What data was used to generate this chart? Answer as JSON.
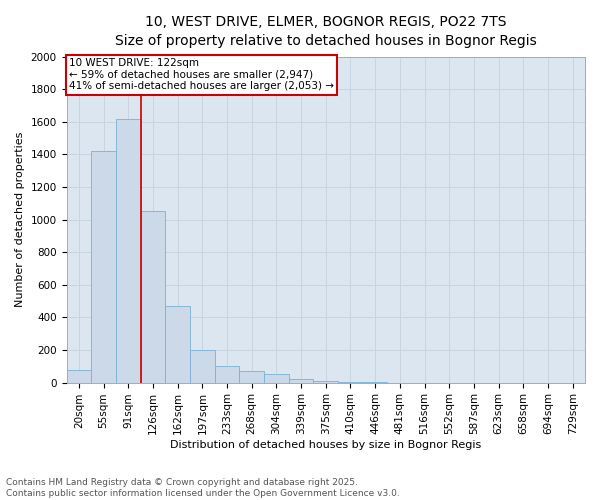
{
  "title_line1": "10, WEST DRIVE, ELMER, BOGNOR REGIS, PO22 7TS",
  "title_line2": "Size of property relative to detached houses in Bognor Regis",
  "xlabel": "Distribution of detached houses by size in Bognor Regis",
  "ylabel": "Number of detached properties",
  "bar_color": "#ccd9e8",
  "bar_edge_color": "#7ab0d4",
  "grid_color": "#c8d4e0",
  "background_color": "#dce6f0",
  "annotation_box_color": "#cc0000",
  "vline_color": "#cc0000",
  "categories": [
    "20sqm",
    "55sqm",
    "91sqm",
    "126sqm",
    "162sqm",
    "197sqm",
    "233sqm",
    "268sqm",
    "304sqm",
    "339sqm",
    "375sqm",
    "410sqm",
    "446sqm",
    "481sqm",
    "516sqm",
    "552sqm",
    "587sqm",
    "623sqm",
    "658sqm",
    "694sqm",
    "729sqm"
  ],
  "values": [
    75,
    1420,
    1620,
    1050,
    470,
    200,
    100,
    70,
    50,
    25,
    10,
    5,
    2,
    0,
    0,
    0,
    0,
    0,
    0,
    0,
    0
  ],
  "ylim": [
    0,
    2000
  ],
  "yticks": [
    0,
    200,
    400,
    600,
    800,
    1000,
    1200,
    1400,
    1600,
    1800,
    2000
  ],
  "annotation_text_line1": "10 WEST DRIVE: 122sqm",
  "annotation_text_line2": "← 59% of detached houses are smaller (2,947)",
  "annotation_text_line3": "41% of semi-detached houses are larger (2,053) →",
  "vline_x": 2.5,
  "footer_line1": "Contains HM Land Registry data © Crown copyright and database right 2025.",
  "footer_line2": "Contains public sector information licensed under the Open Government Licence v3.0.",
  "title_fontsize": 10,
  "axis_label_fontsize": 8,
  "tick_fontsize": 7.5,
  "annotation_fontsize": 7.5,
  "footer_fontsize": 6.5
}
